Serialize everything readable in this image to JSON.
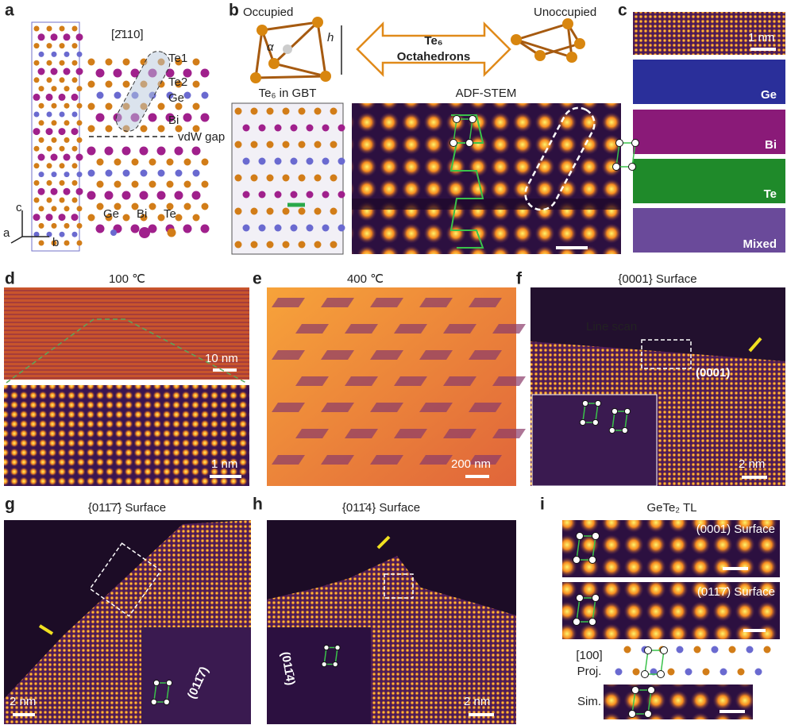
{
  "panels": [
    {
      "label": "a",
      "direction": "[2̄110]",
      "atoms": [
        "Te1",
        "Te2",
        "Ge",
        "Bi"
      ],
      "gap": "vdW gap",
      "axes": [
        "c",
        "a",
        "b"
      ],
      "legend": [
        "Ge",
        "Bi",
        "Te"
      ]
    },
    {
      "label": "b",
      "left": "Occupied",
      "right": "Unoccupied",
      "angle": "α",
      "height": "h",
      "arrow": [
        "Te₆",
        "Octahedrons"
      ],
      "model_title": "Te₆ in GBT",
      "stem_title": "ADF-STEM"
    },
    {
      "label": "c",
      "scale": "1 nm",
      "channels": [
        "Ge",
        "Bi",
        "Te",
        "Mixed"
      ]
    },
    {
      "label": "d",
      "title": "100 ℃",
      "scale": "10 nm",
      "zoom_scale": "1 nm"
    },
    {
      "label": "e",
      "title": "400 ℃",
      "scale": "200 nm"
    },
    {
      "label": "f",
      "title": "{0001} Surface",
      "line_scan": "Line scan",
      "facet": "(0001)",
      "scale": "2 nm"
    },
    {
      "label": "g",
      "title": "{011̄7̄} Surface",
      "facet": "(011̄7̄)",
      "scale": "2 nm"
    },
    {
      "label": "h",
      "title": "{011̄4} Surface",
      "facet": "(011̄4)",
      "scale": "2 nm"
    },
    {
      "label": "i",
      "title": "GeTe₂ TL",
      "surfaces": [
        "(0001) Surface",
        "(011̄7̄) Surface"
      ],
      "projection": [
        "[100]",
        "Proj."
      ],
      "sim": "Sim."
    }
  ]
}
